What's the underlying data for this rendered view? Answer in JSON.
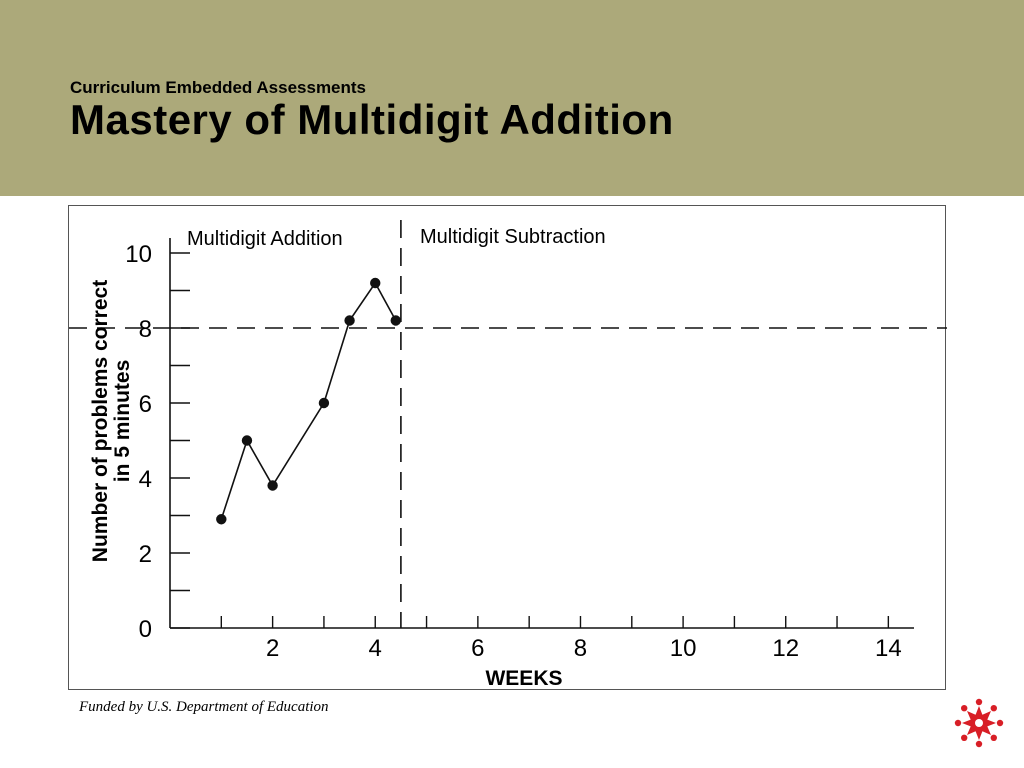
{
  "header": {
    "subtitle": "Curriculum Embedded Assessments",
    "title": "Mastery of Multidigit Addition",
    "background_color": "#aca97a"
  },
  "footer": {
    "funding_note": "Funded by U.S. Department of Education",
    "logo_icon": "red-star-people-logo",
    "logo_color": "#d81e26"
  },
  "chart_data": {
    "type": "line",
    "title": "",
    "xlabel": "WEEKS",
    "ylabel": "Number of problems correct\nin 5 minutes",
    "xlim": [
      0,
      14.5
    ],
    "ylim": [
      0,
      10
    ],
    "x_tick_labels": [
      2,
      4,
      6,
      8,
      10,
      12,
      14
    ],
    "y_tick_labels": [
      0,
      2,
      4,
      6,
      8,
      10
    ],
    "grid": false,
    "goal_line": {
      "y": 8,
      "style": "dashed"
    },
    "phase_change": {
      "x": 4.5,
      "style": "dashed"
    },
    "phases": [
      {
        "label": "Multidigit Addition"
      },
      {
        "label": "Multidigit Subtraction"
      }
    ],
    "series": [
      {
        "x": [
          1,
          1.5,
          2,
          3,
          3.5,
          4,
          4.4
        ],
        "values": [
          2.9,
          5.0,
          3.8,
          6.0,
          8.2,
          9.2,
          8.2
        ]
      }
    ]
  }
}
